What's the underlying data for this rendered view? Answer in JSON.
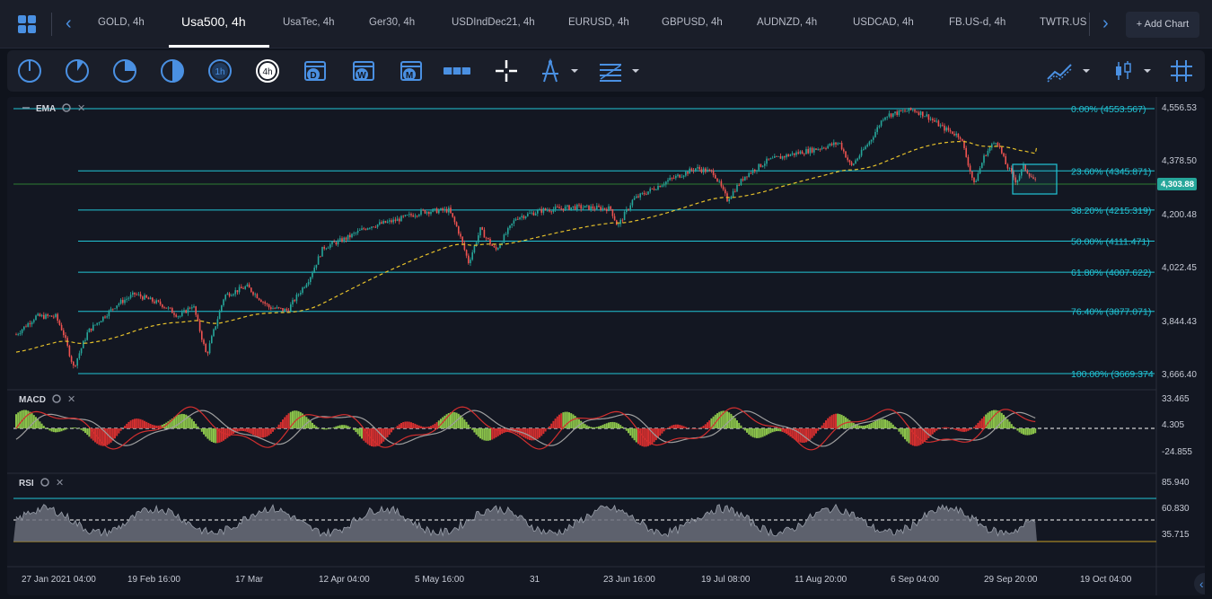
{
  "tabs": [
    "GOLD, 4h",
    "Usa500, 4h",
    "UsaTec, 4h",
    "Ger30, 4h",
    "USDIndDec21, 4h",
    "EURUSD, 4h",
    "GBPUSD, 4h",
    "AUDNZD, 4h",
    "USDCAD, 4h",
    "FB.US-d, 4h",
    "TWTR.US-"
  ],
  "add_chart": "+ Add Chart",
  "toolbar": {
    "timeframes": [
      "",
      "",
      "",
      "",
      "1h",
      "4h"
    ],
    "calendar": [
      "D",
      "W",
      "M"
    ]
  },
  "indicators": {
    "ema": "EMA",
    "macd": "MACD",
    "rsi": "RSI"
  },
  "fibonacci": [
    {
      "label": "0.00% (4553.567)",
      "value": 4553.567
    },
    {
      "label": "23.60% (4345.871)",
      "value": 4345.871
    },
    {
      "label": "38.20% (4215.319)",
      "value": 4215.319
    },
    {
      "label": "50.00% (4111.471)",
      "value": 4111.471
    },
    {
      "label": "61.80% (4007.622)",
      "value": 4007.622
    },
    {
      "label": "76.40% (3877.071)",
      "value": 3877.071
    },
    {
      "label": "100.00% (3669.374",
      "value": 3669.374
    }
  ],
  "price_axis": [
    "4,556.53",
    "4,378.50",
    "4,200.48",
    "4,022.45",
    "3,844.43",
    "3,666.40"
  ],
  "current_price": "4,303.88",
  "macd_axis": [
    "33.465",
    "4.305",
    "-24.855"
  ],
  "rsi_axis": [
    "85.940",
    "60.830",
    "35.715"
  ],
  "time_axis": [
    "27 Jan 2021 04:00",
    "19 Feb 16:00",
    "17 Mar",
    "12 Apr 04:00",
    "5 May 16:00",
    "31",
    "23 Jun 16:00",
    "19 Jul 08:00",
    "11 Aug 20:00",
    "6 Sep 04:00",
    "29 Sep 20:00",
    "19 Oct 04:00"
  ],
  "colors": {
    "up": "#26a69a",
    "down": "#ef5350",
    "fib": "#21c5d6",
    "ema": "#e6c12b",
    "accent": "#4a90e2"
  }
}
